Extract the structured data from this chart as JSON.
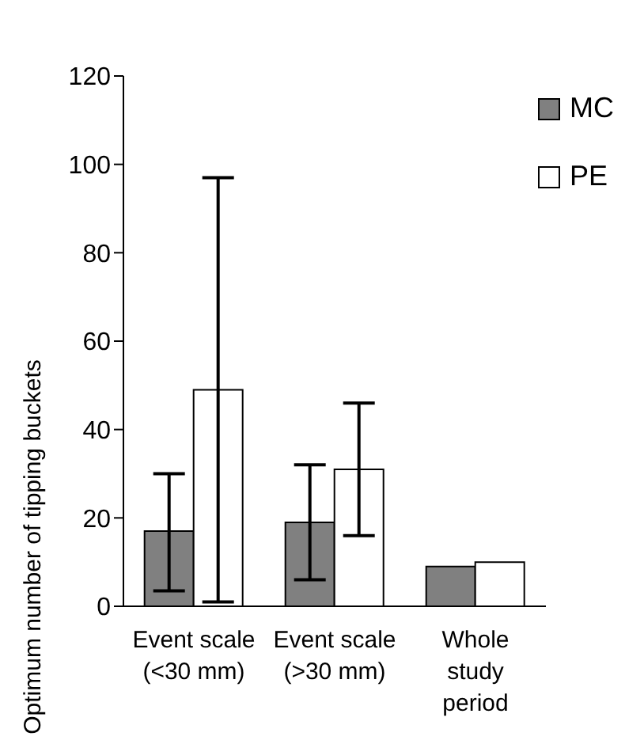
{
  "chart_data": {
    "type": "bar",
    "ylabel": "Optimum number of tipping buckets",
    "categories": [
      "Event scale\n(<30 mm)",
      "Event scale\n(>30 mm)",
      "Whole\nstudy\nperiod"
    ],
    "series": [
      {
        "name": "MC",
        "color": "#808080",
        "values": [
          17,
          19,
          9
        ],
        "errors": [
          [
            3.5,
            30
          ],
          [
            6,
            32
          ],
          null
        ]
      },
      {
        "name": "PE",
        "color": "#ffffff",
        "values": [
          49,
          31,
          10
        ],
        "errors": [
          [
            1,
            97
          ],
          [
            16,
            46
          ],
          null
        ]
      }
    ],
    "ylim": [
      0,
      120
    ],
    "yticks": [
      0,
      20,
      40,
      60,
      80,
      100,
      120
    ],
    "grid": false,
    "legend": "top right"
  }
}
